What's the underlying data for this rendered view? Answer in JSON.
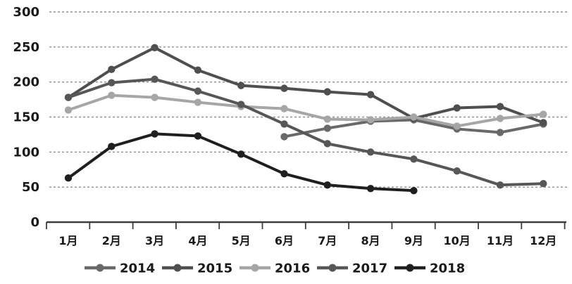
{
  "chart_data": {
    "type": "line",
    "title": "",
    "xlabel": "",
    "ylabel": "",
    "categories": [
      "1月",
      "2月",
      "3月",
      "4月",
      "5月",
      "6月",
      "7月",
      "8月",
      "9月",
      "10月",
      "11月",
      "12月"
    ],
    "y_ticks": [
      0,
      50,
      100,
      150,
      200,
      250,
      300
    ],
    "ylim": [
      0,
      300
    ],
    "grid": "horizontal-dashed",
    "legend_position": "bottom",
    "axis_color": "#3d3d3d",
    "gridline_color": "#8f8f8f",
    "series": [
      {
        "name": "2014",
        "color": "#696969",
        "values": [
          null,
          null,
          null,
          null,
          null,
          122,
          134,
          144,
          146,
          133,
          128,
          140
        ]
      },
      {
        "name": "2015",
        "color": "#4f4f4f",
        "values": [
          178,
          218,
          249,
          217,
          195,
          191,
          186,
          182,
          148,
          163,
          165,
          142
        ]
      },
      {
        "name": "2016",
        "color": "#a6a6a6",
        "values": [
          160,
          181,
          178,
          171,
          165,
          162,
          147,
          146,
          150,
          137,
          148,
          154
        ]
      },
      {
        "name": "2017",
        "color": "#575757",
        "values": [
          178,
          199,
          204,
          187,
          168,
          140,
          112,
          100,
          90,
          73,
          53,
          55
        ]
      },
      {
        "name": "2018",
        "color": "#1f1f1f",
        "values": [
          63,
          108,
          126,
          123,
          97,
          69,
          53,
          48,
          45,
          null,
          null,
          null
        ]
      }
    ]
  }
}
